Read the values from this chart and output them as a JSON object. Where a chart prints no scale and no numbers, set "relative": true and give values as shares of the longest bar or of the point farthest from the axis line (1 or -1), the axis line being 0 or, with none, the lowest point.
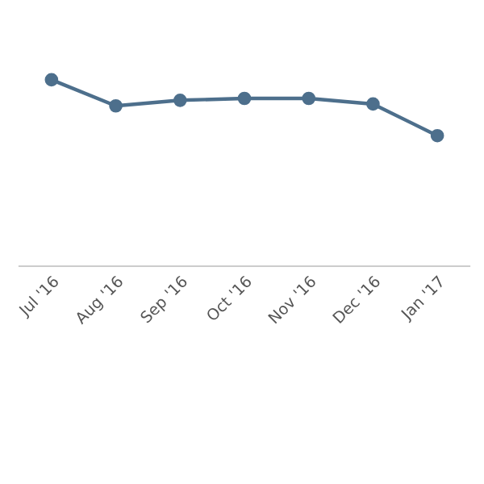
{
  "chart_data": {
    "type": "line",
    "relative": true,
    "categories": [
      "Jul '16",
      "Aug '16",
      "Sep '16",
      "Oct '16",
      "Nov '16",
      "Dec '16",
      "Jan '17"
    ],
    "series": [
      {
        "color": "#4d6f8c",
        "values": [
          1,
          0.86,
          0.89,
          0.9,
          0.9,
          0.87,
          0.7
        ]
      }
    ],
    "marker": "circle",
    "line_style": "solid"
  }
}
